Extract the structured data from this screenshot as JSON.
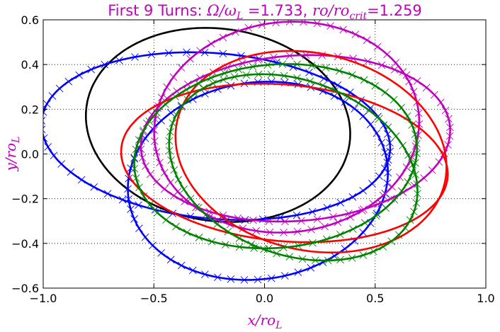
{
  "chart_data": {
    "type": "line",
    "title": {
      "prefix": "First 9 Turns: ",
      "omega_symbol": "Ω/ω",
      "omega_sub": "L",
      "eq1": " =1.733, ",
      "ro_symbol": "ro/ro",
      "ro_sub": "crit",
      "eq2": "=1.259"
    },
    "xlabel": {
      "main": "x/ro",
      "sub": "L"
    },
    "ylabel": {
      "main": "y/ro",
      "sub": "L"
    },
    "title_color": "#bf00bf",
    "xlim": [
      -1.0,
      1.0
    ],
    "ylim": [
      -0.6,
      0.6
    ],
    "xticks": [
      "−1.0",
      "−0.5",
      "0.0",
      "0.5",
      "1.0"
    ],
    "xtick_values": [
      -1.0,
      -0.5,
      0.0,
      0.5,
      1.0
    ],
    "yticks": [
      "0.6",
      "0.4",
      "0.2",
      "0.0",
      "−0.2",
      "−0.4",
      "−0.6"
    ],
    "ytick_values": [
      0.6,
      0.4,
      0.2,
      0.0,
      -0.2,
      -0.4,
      -0.6
    ],
    "grid": true,
    "grid_style": "dotted",
    "marker": "x",
    "series": [
      {
        "color": "#000000",
        "cx": -0.21,
        "cy": 0.13,
        "rx": 0.6,
        "ry": 0.43,
        "rot_deg": -8,
        "markers": false
      },
      {
        "color": "#0000ff",
        "cx": -0.22,
        "cy": 0.08,
        "rx": 0.79,
        "ry": 0.37,
        "rot_deg": -5,
        "markers": true
      },
      {
        "color": "#0000ff",
        "cx": -0.03,
        "cy": -0.12,
        "rx": 0.59,
        "ry": 0.44,
        "rot_deg": 8,
        "markers": true
      },
      {
        "color": "#bf00bf",
        "cx": 0.1,
        "cy": 0.12,
        "rx": 0.6,
        "ry": 0.47,
        "rot_deg": 6,
        "markers": true
      },
      {
        "color": "#bf00bf",
        "cx": 0.14,
        "cy": 0.07,
        "rx": 0.7,
        "ry": 0.37,
        "rot_deg": 4,
        "markers": true
      },
      {
        "color": "#ff0000",
        "cx": 0.21,
        "cy": 0.01,
        "rx": 0.62,
        "ry": 0.44,
        "rot_deg": -13,
        "markers": false
      },
      {
        "color": "#ff0000",
        "cx": 0.09,
        "cy": -0.04,
        "rx": 0.74,
        "ry": 0.35,
        "rot_deg": -5,
        "markers": false
      },
      {
        "color": "#008000",
        "cx": 0.05,
        "cy": -0.01,
        "rx": 0.64,
        "ry": 0.41,
        "rot_deg": 5,
        "markers": true
      },
      {
        "color": "#008000",
        "cx": 0.13,
        "cy": -0.06,
        "rx": 0.58,
        "ry": 0.39,
        "rot_deg": -20,
        "markers": true
      }
    ]
  }
}
